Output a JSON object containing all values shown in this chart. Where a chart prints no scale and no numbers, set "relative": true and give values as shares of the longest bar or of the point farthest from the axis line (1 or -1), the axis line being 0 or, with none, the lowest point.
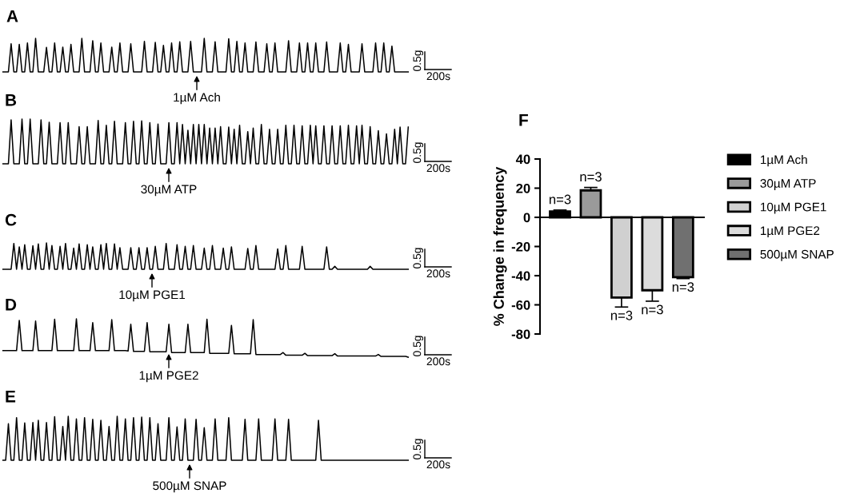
{
  "chart_data": [
    {
      "type": "line",
      "title": "A",
      "relative": true,
      "tick_labels": false,
      "categories": [
        null,
        null,
        null,
        null,
        null,
        null,
        null,
        null,
        null,
        null,
        null,
        null,
        null,
        null,
        null,
        null,
        null,
        null,
        null,
        null,
        null,
        null,
        null,
        null,
        null,
        null,
        null,
        null,
        null,
        null,
        null,
        null,
        null,
        null,
        null,
        null,
        null,
        null,
        null,
        null,
        null,
        null,
        null,
        null,
        null,
        null,
        null,
        null,
        null,
        null,
        null,
        null,
        null,
        null,
        null,
        null,
        null,
        null,
        null,
        null,
        null,
        null,
        null,
        null,
        null,
        null,
        null,
        null,
        null,
        null,
        null,
        null,
        null,
        null,
        null,
        null,
        null,
        null,
        null,
        null,
        null,
        null,
        null,
        null,
        null,
        null,
        null,
        null,
        null,
        null,
        null,
        null,
        null,
        null,
        null,
        null,
        null,
        null,
        null,
        null,
        null,
        null,
        null,
        null,
        null,
        null,
        null,
        null,
        null,
        null,
        null,
        null,
        null,
        null,
        null,
        null,
        null,
        null,
        null,
        null,
        null,
        null,
        null,
        null,
        null,
        null,
        null,
        null,
        null,
        null,
        null,
        null,
        null,
        null,
        null,
        null,
        null,
        null,
        null,
        null,
        null,
        null,
        null,
        null,
        null,
        null,
        null,
        null,
        null,
        null
      ],
      "series": [
        {
          "color": "#000000",
          "values": [
            0,
            0,
            0,
            0.84,
            0,
            0,
            0.82,
            0,
            0,
            0.86,
            0,
            0,
            1,
            0,
            0,
            0,
            0.73,
            0,
            0,
            0.86,
            0,
            0,
            0.74,
            0,
            0,
            0.82,
            0,
            0,
            0,
            1,
            0,
            0,
            0,
            0.93,
            0,
            0,
            0.86,
            0,
            0,
            0,
            0.74,
            0,
            0,
            0.86,
            0,
            0,
            0,
            0.84,
            0,
            0,
            0,
            0,
            0.91,
            0,
            0,
            0,
            0.88,
            0,
            0,
            0.79,
            0,
            0,
            0.86,
            0,
            0,
            0.9,
            0,
            0,
            0,
            0.91,
            0,
            0,
            0,
            0,
            1,
            0,
            0,
            0,
            0.9,
            0,
            0,
            0,
            0,
            0.99,
            0,
            0,
            0.91,
            0,
            0,
            0.86,
            0,
            0,
            0,
            0.89,
            0,
            0,
            0,
            0.84,
            0,
            0,
            0.86,
            0,
            0,
            0,
            0,
            0.93,
            0,
            0,
            0,
            0.86,
            0,
            0,
            0.86,
            0,
            0,
            0.86,
            0,
            0,
            0,
            0.89,
            0,
            0,
            0,
            0,
            0.86,
            0,
            0,
            0.82,
            0,
            0,
            0,
            0,
            0.84,
            0,
            0,
            0,
            0,
            0.86,
            0,
            0,
            0.86,
            0,
            0,
            0.77,
            0,
            0,
            0,
            0,
            0,
            0
          ]
        }
      ],
      "annotations": [
        "1µM Ach",
        "0.5g",
        "200s"
      ]
    },
    {
      "type": "line",
      "title": "B",
      "relative": true,
      "tick_labels": false,
      "categories": [
        null,
        null,
        null,
        null,
        null,
        null,
        null,
        null,
        null,
        null,
        null,
        null,
        null,
        null,
        null,
        null,
        null,
        null,
        null,
        null,
        null,
        null,
        null,
        null,
        null,
        null,
        null,
        null,
        null,
        null,
        null,
        null,
        null,
        null,
        null,
        null,
        null,
        null,
        null,
        null,
        null,
        null,
        null,
        null,
        null,
        null,
        null,
        null,
        null,
        null,
        null,
        null,
        null,
        null,
        null,
        null,
        null,
        null,
        null,
        null,
        null,
        null,
        null,
        null,
        null,
        null,
        null,
        null,
        null,
        null,
        null,
        null,
        null,
        null,
        null,
        null,
        null,
        null,
        null,
        null,
        null,
        null,
        null,
        null,
        null,
        null,
        null,
        null,
        null,
        null,
        null,
        null,
        null,
        null,
        null,
        null,
        null,
        null,
        null,
        null,
        null,
        null,
        null,
        null,
        null,
        null,
        null,
        null,
        null,
        null,
        null,
        null,
        null,
        null,
        null,
        null,
        null,
        null,
        null,
        null,
        null,
        null,
        null,
        null,
        null,
        null,
        null,
        null,
        null,
        null,
        null,
        null,
        null,
        null,
        null,
        null,
        null,
        null,
        null,
        null,
        null,
        null,
        null,
        null,
        null,
        null,
        null,
        null,
        null,
        null
      ],
      "series": [
        {
          "color": "#000000",
          "values": [
            0,
            0,
            0,
            0.98,
            0,
            0,
            0,
            1,
            0,
            0,
            1,
            0,
            0,
            0,
            0.98,
            0,
            0,
            0.93,
            0,
            0,
            0,
            0.92,
            0,
            0,
            0.92,
            0,
            0,
            0,
            0.83,
            0,
            0,
            0.83,
            0,
            0,
            0,
            0.97,
            0,
            0,
            0.86,
            0,
            0,
            0.95,
            0,
            0,
            0,
            0.92,
            0,
            0,
            0.95,
            0,
            0,
            0.96,
            0,
            0,
            0.92,
            0,
            0,
            0.89,
            0,
            0,
            0,
            0.92,
            0,
            0,
            0.92,
            0,
            0.88,
            0,
            0.75,
            0,
            0.88,
            0,
            0.88,
            0,
            0.88,
            0,
            0.8,
            0,
            0.8,
            0,
            0.83,
            0,
            0,
            0.82,
            0,
            0.77,
            0,
            0.86,
            0,
            0,
            0.72,
            0,
            0.8,
            0,
            0,
            0.88,
            0,
            0,
            0.77,
            0,
            0,
            0.77,
            0,
            0,
            0.86,
            0,
            0,
            0.86,
            0,
            0,
            0.85,
            0,
            0,
            0.86,
            0,
            0.85,
            0,
            0,
            0.85,
            0,
            0,
            0.85,
            0,
            0,
            0.85,
            0,
            0,
            0.86,
            0,
            0,
            0.85,
            0,
            0.86,
            0,
            0,
            0.83,
            0,
            0,
            0.74,
            0,
            0,
            0.67,
            0,
            0,
            0.77,
            0,
            0.82,
            0,
            0,
            0.82
          ]
        }
      ],
      "annotations": [
        "30µM ATP",
        "0.5g",
        "200s"
      ]
    },
    {
      "type": "line",
      "title": "C",
      "relative": true,
      "tick_labels": false,
      "categories": [
        null,
        null,
        null,
        null,
        null,
        null,
        null,
        null,
        null,
        null,
        null,
        null,
        null,
        null,
        null,
        null,
        null,
        null,
        null,
        null,
        null,
        null,
        null,
        null,
        null,
        null,
        null,
        null,
        null,
        null,
        null,
        null,
        null,
        null,
        null,
        null,
        null,
        null,
        null,
        null,
        null,
        null,
        null,
        null,
        null,
        null,
        null,
        null,
        null,
        null,
        null,
        null,
        null,
        null,
        null,
        null,
        null,
        null,
        null,
        null,
        null,
        null,
        null,
        null,
        null,
        null,
        null,
        null,
        null,
        null,
        null,
        null,
        null,
        null,
        null,
        null,
        null,
        null,
        null,
        null,
        null,
        null,
        null,
        null,
        null,
        null,
        null,
        null,
        null,
        null,
        null,
        null,
        null,
        null,
        null,
        null,
        null,
        null,
        null,
        null,
        null,
        null,
        null,
        null,
        null,
        null,
        null,
        null,
        null,
        null,
        null,
        null,
        null,
        null,
        null,
        null,
        null,
        null,
        null,
        null,
        null,
        null,
        null,
        null,
        null,
        null,
        null,
        null,
        null,
        null,
        null,
        null,
        null,
        null,
        null,
        null,
        null,
        null,
        null,
        null,
        null,
        null,
        null,
        null,
        null,
        null,
        null,
        null,
        null,
        null
      ],
      "series": [
        {
          "color": "#000000",
          "values": [
            0,
            0,
            0,
            0,
            0.98,
            0,
            0.85,
            0,
            0.93,
            0,
            0,
            0.89,
            0,
            0.96,
            0,
            0,
            1,
            0,
            0.9,
            0,
            0,
            0.87,
            0,
            0.98,
            0,
            0,
            0.8,
            0,
            0.96,
            0,
            0,
            0.93,
            0,
            0.85,
            0,
            0,
            0.93,
            0,
            0.98,
            0,
            0,
            0.96,
            0,
            0.82,
            0,
            0,
            0,
            0.82,
            0,
            0,
            0.82,
            0,
            0,
            0.82,
            0,
            0,
            0.87,
            0,
            0,
            0,
            0.98,
            0,
            0,
            0,
            0.93,
            0,
            0,
            0.87,
            0,
            0,
            0.9,
            0,
            0,
            0,
            0.8,
            0,
            0,
            0.9,
            0,
            0,
            0,
            0.8,
            0,
            0,
            0.85,
            0,
            0,
            0,
            0,
            0,
            0.79,
            0,
            0,
            0.9,
            0,
            0,
            0,
            0,
            0,
            0,
            0,
            0.77,
            0,
            0,
            0.9,
            0,
            0,
            0,
            0,
            0,
            0.87,
            0,
            0,
            0,
            0,
            0,
            0,
            0,
            0,
            0.85,
            0,
            0,
            0.11,
            0,
            0,
            0,
            0,
            0,
            0,
            0,
            0,
            0,
            0,
            0,
            0,
            0.11,
            0,
            0,
            0,
            0,
            0,
            0,
            0,
            0,
            0,
            0,
            0,
            0,
            0,
            0
          ]
        }
      ],
      "annotations": [
        "10µM PGE1",
        "0.5g",
        "200s"
      ]
    },
    {
      "type": "line",
      "title": "D",
      "relative": true,
      "tick_labels": false,
      "categories": [
        null,
        null,
        null,
        null,
        null,
        null,
        null,
        null,
        null,
        null,
        null,
        null,
        null,
        null,
        null,
        null,
        null,
        null,
        null,
        null,
        null,
        null,
        null,
        null,
        null,
        null,
        null,
        null,
        null,
        null,
        null,
        null,
        null,
        null,
        null,
        null,
        null,
        null,
        null,
        null,
        null,
        null,
        null,
        null,
        null,
        null,
        null,
        null,
        null,
        null,
        null,
        null,
        null,
        null,
        null,
        null,
        null,
        null,
        null,
        null,
        null,
        null,
        null,
        null,
        null,
        null,
        null,
        null,
        null,
        null,
        null,
        null,
        null,
        null,
        null,
        null,
        null,
        null,
        null,
        null,
        null,
        null,
        null,
        null,
        null,
        null,
        null,
        null,
        null,
        null,
        null,
        null,
        null,
        null,
        null,
        null,
        null,
        null,
        null,
        null,
        null,
        null,
        null,
        null,
        null,
        null,
        null,
        null,
        null,
        null,
        null,
        null,
        null,
        null,
        null,
        null,
        null,
        null,
        null,
        null,
        null,
        null,
        null,
        null,
        null,
        null,
        null,
        null,
        null,
        null,
        null,
        null,
        null,
        null,
        null,
        null,
        null,
        null,
        null,
        null,
        null,
        null,
        null,
        null,
        null,
        null,
        null,
        null,
        null,
        null
      ],
      "series": [
        {
          "color": "#000000",
          "values": [
            0.17,
            0.17,
            0.17,
            0.17,
            0.17,
            0.17,
            0.96,
            0.17,
            0.17,
            0.17,
            0.17,
            0.17,
            0.94,
            0.17,
            0.17,
            0.17,
            0.17,
            0.17,
            0.17,
            0.99,
            0.17,
            0.17,
            0.17,
            0.17,
            0.17,
            0.17,
            0.17,
            1,
            0.17,
            0.17,
            0.17,
            0.17,
            0.17,
            0.9,
            0.17,
            0.17,
            0.17,
            0.17,
            0.17,
            0.17,
            0.98,
            0.17,
            0.17,
            0.17,
            0.17,
            0.17,
            0.16,
            0.86,
            0.15,
            0.15,
            0.15,
            0.15,
            0.15,
            0.9,
            0.14,
            0.14,
            0.14,
            0.14,
            0.14,
            0.14,
            0.14,
            0.86,
            0.12,
            0.12,
            0.12,
            0.12,
            0.12,
            0.12,
            0.86,
            0.12,
            0.12,
            0.12,
            0.12,
            0.12,
            0.12,
            0.99,
            0.1,
            0.1,
            0.1,
            0.1,
            0.1,
            0.1,
            0.1,
            0.1,
            0.83,
            0.09,
            0.09,
            0.09,
            0.09,
            0.09,
            0.09,
            0.09,
            0.98,
            0.07,
            0.07,
            0.07,
            0.07,
            0.07,
            0.07,
            0.07,
            0.07,
            0.07,
            0.07,
            0.12,
            0.05,
            0.05,
            0.05,
            0.05,
            0.05,
            0.05,
            0.05,
            0.1,
            0.04,
            0.04,
            0.04,
            0.04,
            0.04,
            0.04,
            0.04,
            0.04,
            0.04,
            0.04,
            0.09,
            0.03,
            0.03,
            0.03,
            0.03,
            0.03,
            0.03,
            0.03,
            0.03,
            0.03,
            0.03,
            0.03,
            0.03,
            0.03,
            0.03,
            0.03,
            0.07,
            0.02,
            0.02,
            0.02,
            0.02,
            0.02,
            0.02,
            0.02,
            0.02,
            0.02,
            0.02,
            0
          ]
        }
      ],
      "annotations": [
        "1µM PGE2",
        "0.5g",
        "200s"
      ]
    },
    {
      "type": "line",
      "title": "E",
      "relative": true,
      "tick_labels": false,
      "categories": [
        null,
        null,
        null,
        null,
        null,
        null,
        null,
        null,
        null,
        null,
        null,
        null,
        null,
        null,
        null,
        null,
        null,
        null,
        null,
        null,
        null,
        null,
        null,
        null,
        null,
        null,
        null,
        null,
        null,
        null,
        null,
        null,
        null,
        null,
        null,
        null,
        null,
        null,
        null,
        null,
        null,
        null,
        null,
        null,
        null,
        null,
        null,
        null,
        null,
        null,
        null,
        null,
        null,
        null,
        null,
        null,
        null,
        null,
        null,
        null,
        null,
        null,
        null,
        null,
        null,
        null,
        null,
        null,
        null,
        null,
        null,
        null,
        null,
        null,
        null,
        null,
        null,
        null,
        null,
        null,
        null,
        null,
        null,
        null,
        null,
        null,
        null,
        null,
        null,
        null,
        null,
        null,
        null,
        null,
        null,
        null,
        null,
        null,
        null,
        null,
        null,
        null,
        null,
        null,
        null,
        null,
        null,
        null,
        null,
        null,
        null,
        null,
        null,
        null,
        null,
        null,
        null,
        null,
        null,
        null,
        null,
        null,
        null,
        null,
        null,
        null,
        null,
        null,
        null,
        null,
        null,
        null,
        null,
        null,
        null,
        null,
        null,
        null,
        null,
        null,
        null,
        null,
        null,
        null,
        null,
        null,
        null,
        null,
        null,
        null
      ],
      "series": [
        {
          "color": "#000000",
          "values": [
            0,
            0,
            0.83,
            0,
            0,
            0.97,
            0,
            0,
            0.85,
            0,
            0,
            0.86,
            0,
            0.91,
            0,
            0,
            0.86,
            0,
            0,
            0.99,
            0,
            0,
            0.77,
            0,
            1,
            0,
            0,
            0.94,
            0,
            0,
            0.97,
            0,
            0,
            0.93,
            0,
            0,
            0.91,
            0,
            0,
            0.77,
            0,
            0,
            1,
            0,
            0,
            0.94,
            0,
            0,
            0.97,
            0,
            0,
            0.98,
            0,
            0,
            0.97,
            0,
            0,
            0.83,
            0,
            0,
            0,
            0.97,
            0,
            0,
            0.76,
            0,
            0,
            0.94,
            0,
            0,
            0,
            0.93,
            0,
            0,
            0.74,
            0,
            0,
            0,
            0.94,
            0,
            0,
            0,
            0,
            0.97,
            0,
            0,
            0,
            0,
            0,
            0.93,
            0,
            0,
            0,
            0,
            0.94,
            0,
            0,
            0,
            0,
            0,
            0.94,
            0,
            0,
            0,
            0,
            0.93,
            0,
            0,
            0,
            0,
            0,
            0,
            0,
            0,
            0,
            0,
            0.91,
            0,
            0,
            0,
            0,
            0,
            0,
            0,
            0,
            0,
            0,
            0,
            0,
            0,
            0,
            0,
            0,
            0,
            0,
            0,
            0,
            0,
            0,
            0,
            0,
            0,
            0,
            0,
            0,
            0,
            0,
            0,
            0,
            0
          ]
        }
      ],
      "annotations": [
        "500µM SNAP",
        "0.5g",
        "200s"
      ]
    },
    {
      "type": "bar",
      "title": "F",
      "ylabel": "% Change in frequency",
      "categories": [
        null,
        null,
        null,
        null,
        null
      ],
      "ylim": [
        -80,
        40
      ],
      "yticks": [
        40,
        20,
        0,
        -20,
        -40,
        -60,
        -80
      ],
      "tick_labels": "y",
      "legend": "right",
      "series": [
        {
          "name": "1µM Ach",
          "color": "#000000",
          "values": [
            4,
            null,
            null,
            null,
            null
          ],
          "errors": [
            [
              4,
              5
            ],
            null,
            null,
            null,
            null
          ]
        },
        {
          "name": "30µM ATP",
          "color": "#9a9a9a",
          "values": [
            null,
            18.5,
            null,
            null,
            null
          ],
          "errors": [
            null,
            [
              18.5,
              20.5
            ],
            null,
            null,
            null
          ]
        },
        {
          "name": "10µM PGE1",
          "color": "#d0d0d0",
          "values": [
            null,
            null,
            -55,
            null,
            null
          ],
          "errors": [
            null,
            null,
            [
              -61.5,
              -55
            ],
            null,
            null
          ]
        },
        {
          "name": "1µM PGE2",
          "color": "#dcdcdc",
          "values": [
            null,
            null,
            null,
            -50,
            null
          ],
          "errors": [
            null,
            null,
            null,
            [
              -57.5,
              -50
            ],
            null
          ]
        },
        {
          "name": "500µM SNAP",
          "color": "#707070",
          "values": [
            null,
            null,
            null,
            null,
            -41
          ],
          "errors": [
            null,
            null,
            null,
            null,
            [
              -42,
              -41
            ]
          ]
        }
      ],
      "annotations": [
        {
          "text": "n=3",
          "y": 5
        },
        {
          "text": "n=3",
          "y": 20.5
        },
        {
          "text": "n=3",
          "y": -61.5
        },
        {
          "text": "n=3",
          "y": -57.5
        },
        {
          "text": "n=3",
          "y": -42
        }
      ]
    }
  ]
}
